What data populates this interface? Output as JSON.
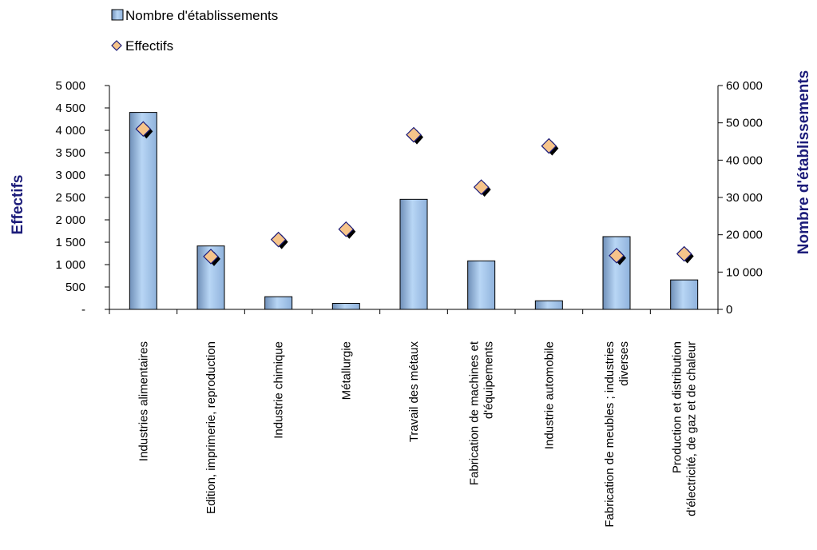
{
  "chart_data": {
    "type": "bar",
    "categories": [
      [
        "Industries alimentaires"
      ],
      [
        "Edition, imprimerie, reproduction"
      ],
      [
        "Industrie chimique"
      ],
      [
        "Métallurgie"
      ],
      [
        "Travail des métaux"
      ],
      [
        "Fabrication de machines et",
        "d'équipements"
      ],
      [
        "Industrie automobile"
      ],
      [
        "Fabrication de meubles ; industries",
        "diverses"
      ],
      [
        "Production et distribution",
        "d'électricité, de gaz et de chaleur"
      ]
    ],
    "series": [
      {
        "name": "Nombre d'établissements",
        "type": "bar",
        "axis": "right",
        "values": [
          52800,
          17000,
          3400,
          1600,
          29500,
          13000,
          2300,
          19500,
          7900
        ],
        "color": "#a6c8ef"
      },
      {
        "name": "Effectifs",
        "type": "scatter",
        "axis": "left",
        "marker": "diamond",
        "values": [
          4030,
          1180,
          1560,
          1790,
          3900,
          2730,
          3650,
          1200,
          1240
        ],
        "color": "#f6c48a"
      }
    ],
    "left_axis": {
      "title": "Effectifs",
      "ylim": [
        0,
        5000
      ],
      "ticks": [
        "-",
        "500",
        "1 000",
        "1 500",
        "2 000",
        "2 500",
        "3 000",
        "3 500",
        "4 000",
        "4 500",
        "5 000"
      ]
    },
    "right_axis": {
      "title": "Nombre d'établissements",
      "ylim": [
        0,
        60000
      ],
      "ticks": [
        "0",
        "10 000",
        "20 000",
        "30 000",
        "40 000",
        "50 000",
        "60 000"
      ]
    },
    "legend": {
      "placement": "top-left",
      "entries": [
        "Nombre d'établissements",
        "Effectifs"
      ]
    },
    "grid": false,
    "colors": {
      "axis_title": "#1c1c7a",
      "bar_fill": "#a6c8ef",
      "bar_stroke": "#000000",
      "marker_fill": "#f6c48a",
      "marker_shadow": "#000000",
      "marker_stroke": "#1c1c7a"
    }
  }
}
